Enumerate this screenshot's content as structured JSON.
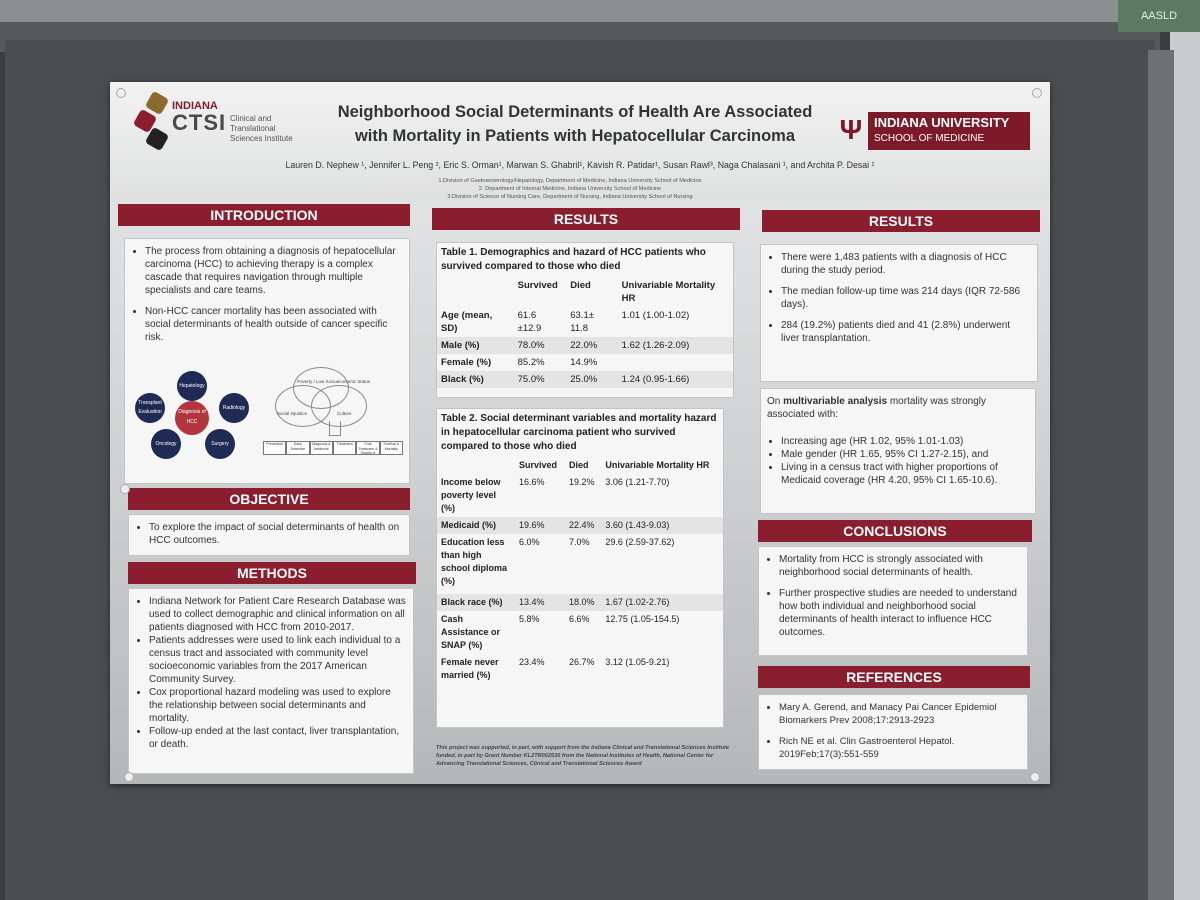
{
  "header": {
    "ctsi_indiana": "INDIANA",
    "ctsi_name": "CTSI",
    "ctsi_full": "Clinical and Translational Sciences Institute",
    "title_line1": "Neighborhood Social Determinants of Health Are Associated",
    "title_line2": "with Mortality in Patients with Hepatocellular Carcinoma",
    "iu_name": "INDIANA UNIVERSITY",
    "iu_school": "SCHOOL OF MEDICINE",
    "authors": "Lauren D. Nephew ¹, Jennifer L. Peng ², Eric S. Orman¹, Marwan S. Ghabril¹, Kavish R. Patidar¹, Susan Rawl³, Naga Chalasani ¹, and Archita P. Desai ¹",
    "affiliations": [
      "1.Division of Gastroenterology/Hepatology, Department of Medicine, Indiana University School of Medicine",
      "2. Department of Internal Medicine, Indiana University School of Medicine",
      "3.Division of Science of Nursing Care, Department of Nursing, Indiana University School of Nursing"
    ]
  },
  "introduction": {
    "heading": "INTRODUCTION",
    "bullets": [
      "The process from obtaining a diagnosis of hepatocellular carcinoma (HCC) to achieving therapy is a complex cascade that requires navigation through multiple specialists and care teams.",
      "Non-HCC cancer mortality has been associated with social determinants of health outside of cancer specific risk."
    ],
    "diagram": {
      "center": "Diagnosis of HCC",
      "nodes": [
        "Hepatology",
        "Radiology",
        "Surgery",
        "Oncology",
        "Transplant Evaluation"
      ],
      "venn": [
        "Poverty / Low Socioeconomic Status",
        "Social Injustice",
        "Culture"
      ],
      "flow": [
        "Prevention",
        "Early Detection",
        "Diagnosis & Incidence",
        "Treatment",
        "Post Treatment & Quality of Life",
        "Survival & Mortality"
      ]
    }
  },
  "objective": {
    "heading": "OBJECTIVE",
    "bullets": [
      "To explore the impact of social determinants of health on HCC outcomes."
    ]
  },
  "methods": {
    "heading": "METHODS",
    "bullets": [
      "Indiana Network for Patient Care Research Database was used to collect demographic and clinical information on all patients diagnosed with HCC from 2010-2017.",
      "Patients addresses were used to link each individual to a census tract and associated with community level socioeconomic variables from the 2017 American Community Survey.",
      "Cox proportional hazard modeling was used to explore the relationship between social determinants and mortality.",
      "Follow-up ended at the last contact, liver transplantation, or death."
    ]
  },
  "results_mid": {
    "heading": "RESULTS",
    "table1": {
      "caption": "Table 1. Demographics and hazard of HCC patients who survived compared to those who died",
      "headers": [
        "",
        "Survived",
        "Died",
        "Univariable Mortality HR"
      ],
      "rows": [
        [
          "Age (mean, SD)",
          "61.6 ±12.9",
          "63.1± 11.8",
          "1.01 (1.00-1.02)"
        ],
        [
          "Male (%)",
          "78.0%",
          "22.0%",
          "1.62 (1.26-2.09)"
        ],
        [
          "Female (%)",
          "85.2%",
          "14.9%",
          ""
        ],
        [
          "Black (%)",
          "75.0%",
          "25.0%",
          "1.24 (0.95-1.66)"
        ]
      ]
    },
    "table2": {
      "caption": "Table 2. Social determinant variables and mortality hazard in hepatocellular carcinoma patient who survived compared to those who died",
      "headers": [
        "",
        "Survived",
        "Died",
        "Univariable Mortality HR"
      ],
      "rows": [
        [
          "Income below poverty level (%)",
          "16.6%",
          "19.2%",
          "3.06 (1.21-7.70)"
        ],
        [
          "Medicaid (%)",
          "19.6%",
          "22.4%",
          "3.60 (1.43-9.03)"
        ],
        [
          "Education less than high school diploma (%)",
          "6.0%",
          "7.0%",
          "29.6 (2.59-37.62)"
        ],
        [
          "Black race (%)",
          "13.4%",
          "18.0%",
          "1.67 (1.02-2.76)"
        ],
        [
          "Cash Assistance or SNAP (%)",
          "5.8%",
          "6.6%",
          "12.75 (1.05-154.5)"
        ],
        [
          "Female never married (%)",
          "23.4%",
          "26.7%",
          "3.12 (1.05-9.21)"
        ]
      ]
    },
    "funding": "This project was supported, in part, with support from the Indiana Clinical and Translational Sciences Institute funded, in part by Grant Number KL2TR002530 from the National Institutes of Health, National Center for Advancing Translational Sciences, Clinical and Translational Sciences Award"
  },
  "results_right": {
    "heading": "RESULTS",
    "bullets": [
      "There were 1,483 patients with a diagnosis of HCC during the study period.",
      "The median follow-up time was 214 days (IQR 72-586 days).",
      "284 (19.2%) patients died and 41 (2.8%) underwent liver transplantation."
    ],
    "mv_prefix": "On ",
    "mv_bold": "multivariable analysis",
    "mv_suffix": " mortality was strongly associated with:",
    "mv_bullets": [
      "Increasing age (HR 1.02, 95% 1.01-1.03)",
      "Male gender (HR 1.65, 95% CI 1.27-2.15), and",
      "Living in a census tract with higher proportions of Medicaid coverage (HR 4.20, 95% CI 1.65-10.6)."
    ]
  },
  "conclusions": {
    "heading": "CONCLUSIONS",
    "bullets": [
      "Mortality from HCC is strongly associated with neighborhood social determinants of health.",
      "Further prospective studies are needed to understand how both individual and neighborhood social determinants of health interact to influence HCC outcomes."
    ]
  },
  "references": {
    "heading": "REFERENCES",
    "bullets": [
      "Mary A. Gerend, and Manacy Pai Cancer Epidemiol Biomarkers Prev 2008;17:2913-2923",
      "Rich NE et al. Clin Gastroenterol Hepatol. 2019Feb;17(3):551-559"
    ]
  },
  "environment": {
    "sign_text": "AASLD"
  }
}
